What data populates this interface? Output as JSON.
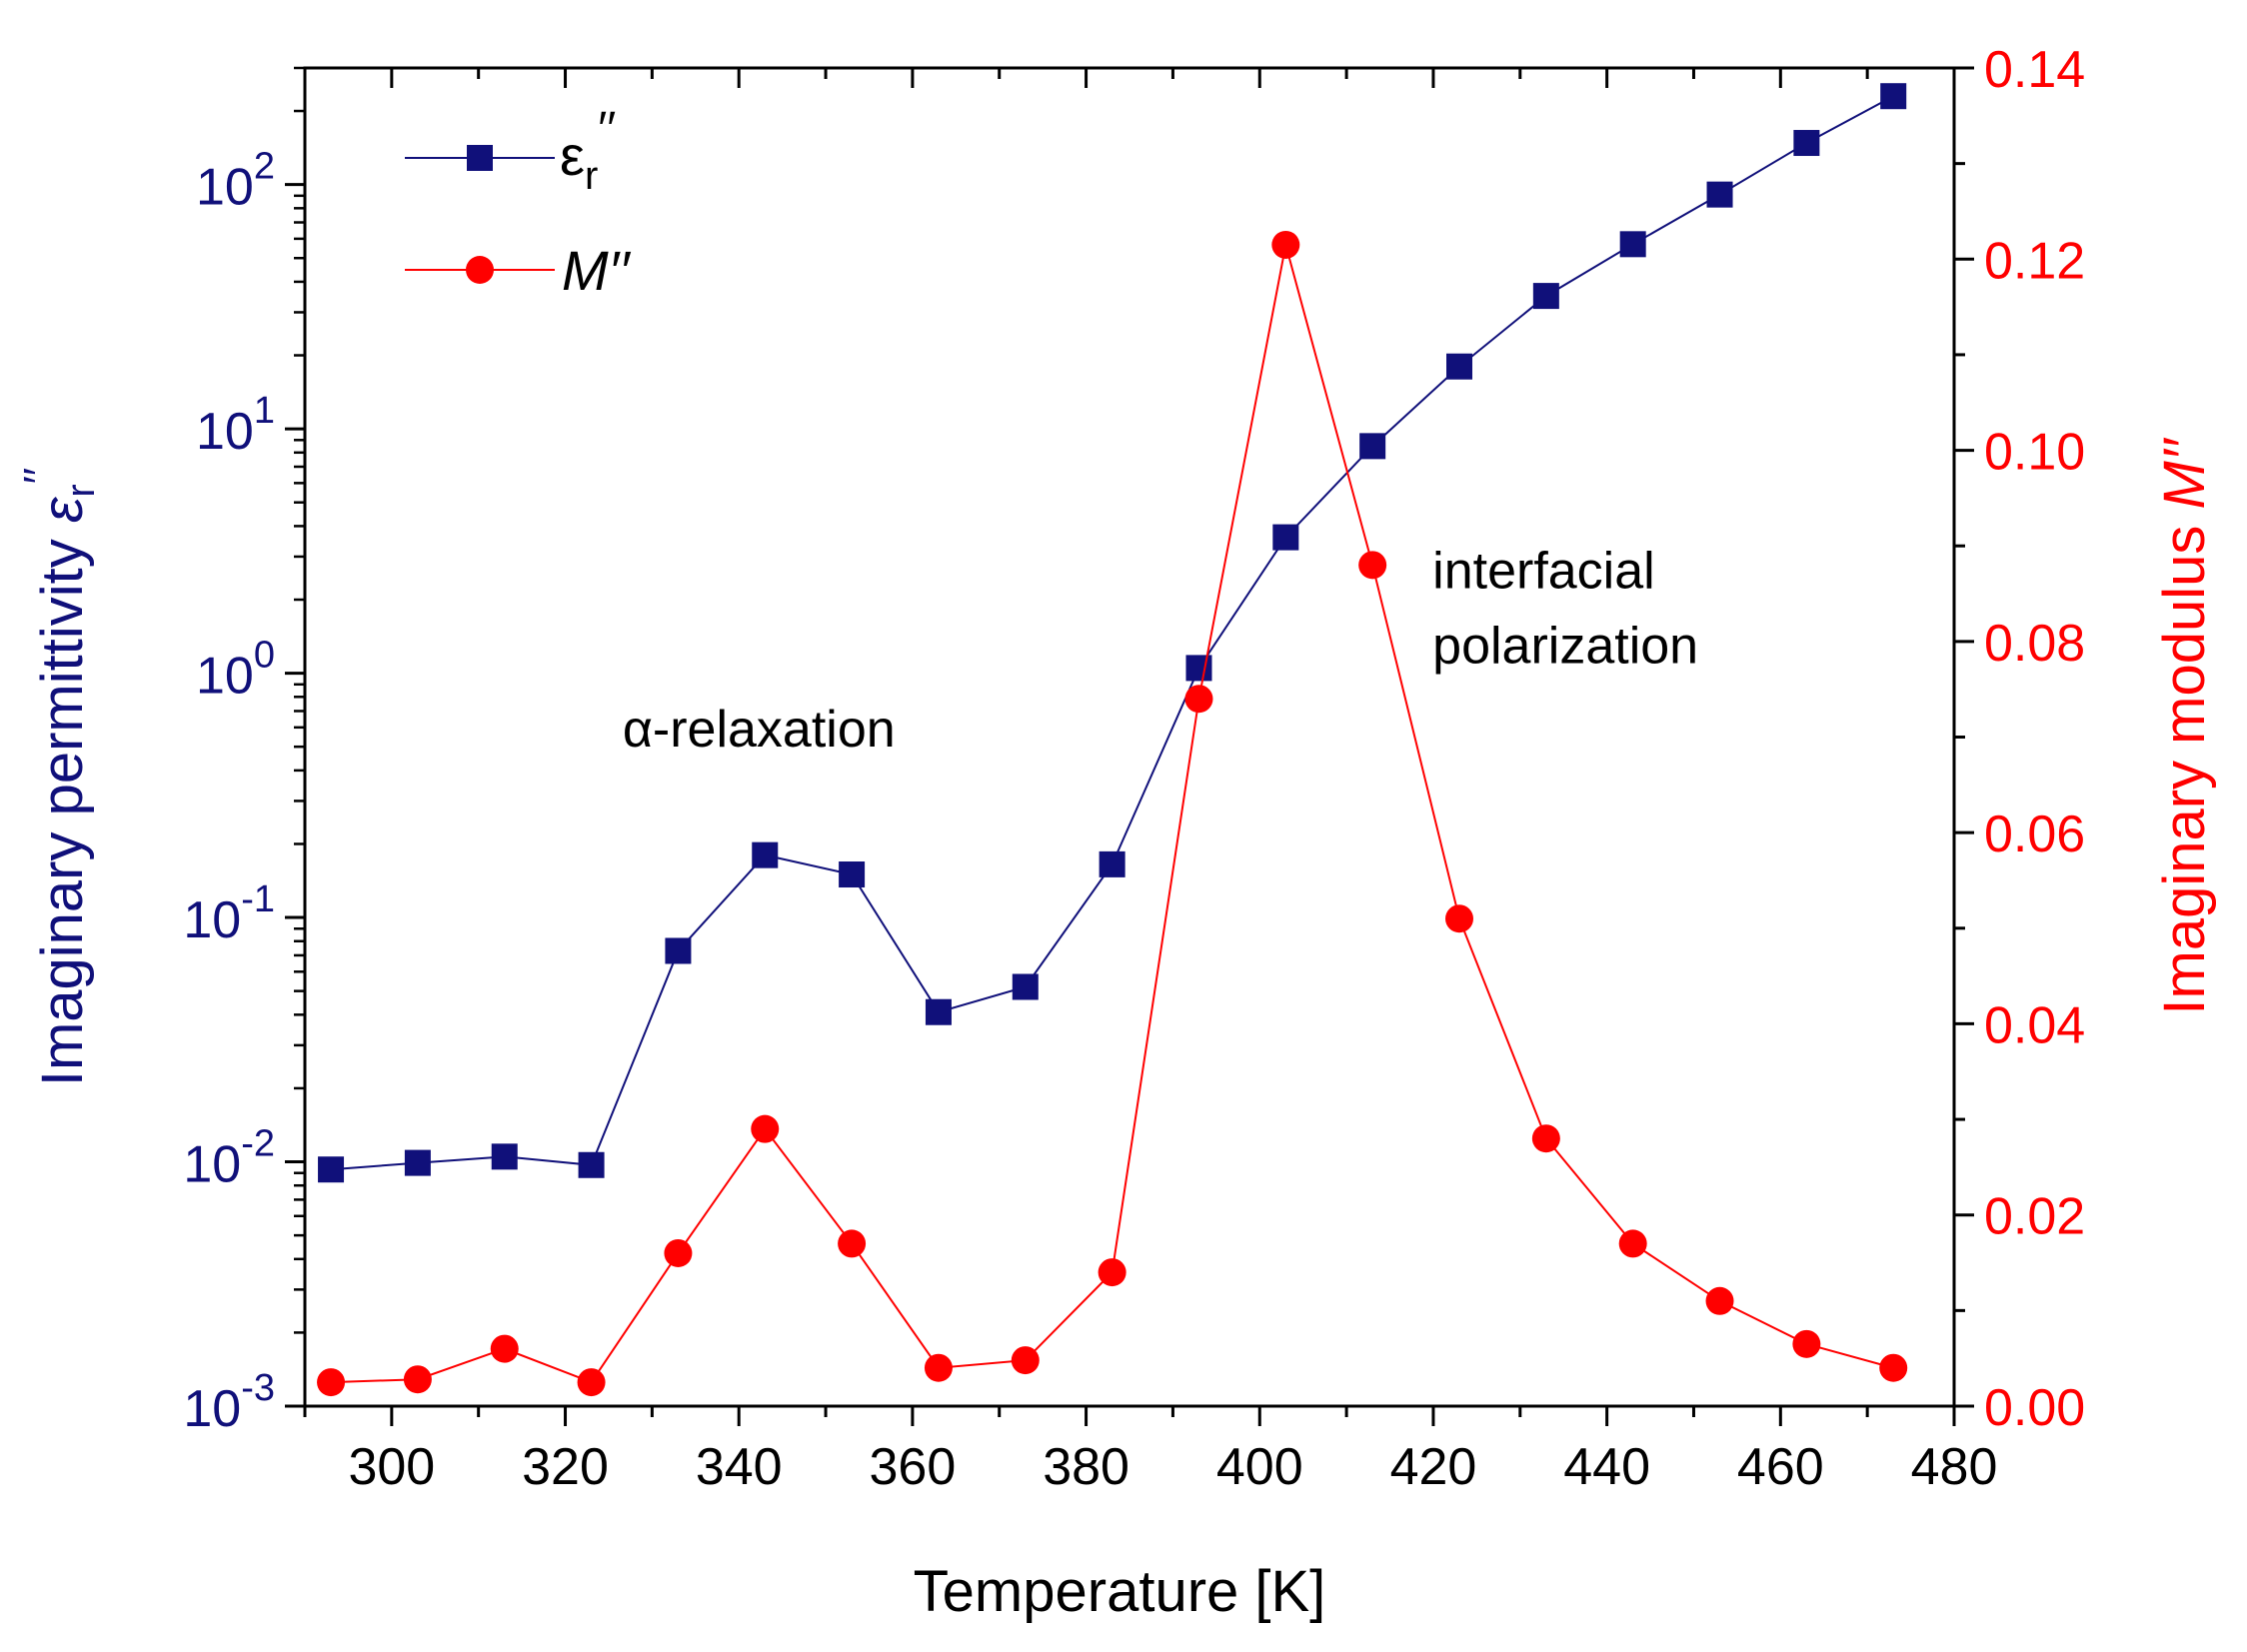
{
  "chart_data": {
    "type": "line",
    "x_axis": {
      "label": "Temperature [K]",
      "lim": [
        290,
        480
      ],
      "ticks": [
        300,
        320,
        340,
        360,
        380,
        400,
        420,
        440,
        460,
        480
      ],
      "tick_labels": [
        "300",
        "320",
        "340",
        "360",
        "380",
        "400",
        "420",
        "440",
        "460",
        "480"
      ]
    },
    "y_left": {
      "label_prefix": "Imaginary permittivity ",
      "label_symbol": "ε",
      "label_sub": "r",
      "label_sup": "′′",
      "scale": "log",
      "lim": [
        0.001,
        300
      ],
      "ticks": [
        {
          "value": 0.001,
          "base": "10",
          "exp": "-3"
        },
        {
          "value": 0.01,
          "base": "10",
          "exp": "-2"
        },
        {
          "value": 0.1,
          "base": "10",
          "exp": "-1"
        },
        {
          "value": 1,
          "base": "10",
          "exp": "0"
        },
        {
          "value": 10,
          "base": "10",
          "exp": "1"
        },
        {
          "value": 100,
          "base": "10",
          "exp": "2"
        }
      ],
      "color": "#10107a"
    },
    "y_right": {
      "label_prefix": "Imaginary modulus ",
      "label_italic": "M′′",
      "scale": "linear",
      "lim": [
        0,
        0.14
      ],
      "ticks": [
        0,
        0.02,
        0.04,
        0.06,
        0.08,
        0.1,
        0.12,
        0.14
      ],
      "tick_labels": [
        "0.00",
        "0.02",
        "0.04",
        "0.06",
        "0.08",
        "0.10",
        "0.12",
        "0.14"
      ],
      "color": "#ff0000"
    },
    "series": [
      {
        "name": "ε_r′′",
        "legend_symbol": "ε",
        "legend_sub": "r",
        "legend_sup": "′′",
        "axis": "left",
        "marker": "square",
        "color": "#10107a",
        "x": [
          293,
          303,
          313,
          323,
          333,
          343,
          353,
          363,
          373,
          383,
          393,
          403,
          413,
          423,
          433,
          443,
          453,
          463,
          473
        ],
        "values": [
          0.0093,
          0.0099,
          0.0105,
          0.0097,
          0.073,
          0.18,
          0.15,
          0.041,
          0.052,
          0.165,
          1.05,
          3.6,
          8.5,
          18,
          35,
          57,
          91,
          148,
          230
        ]
      },
      {
        "name": "M′′",
        "legend_label": "M′′",
        "axis": "right",
        "marker": "circle",
        "color": "#ff0000",
        "x": [
          293,
          303,
          313,
          323,
          333,
          343,
          353,
          363,
          373,
          383,
          393,
          403,
          413,
          423,
          433,
          443,
          453,
          463,
          473
        ],
        "values": [
          0.0025,
          0.0028,
          0.006,
          0.0025,
          0.016,
          0.029,
          0.017,
          0.004,
          0.0048,
          0.014,
          0.074,
          0.1215,
          0.088,
          0.051,
          0.028,
          0.017,
          0.011,
          0.0065,
          0.004
        ]
      }
    ],
    "annotations": [
      {
        "text": "α-relaxation",
        "x": 343,
        "y_left": 0.5
      },
      {
        "text_lines": [
          "interfacial",
          "polarization"
        ],
        "x": 413,
        "y_left": 2.5
      }
    ],
    "legend_position": "top-left",
    "grid": false
  }
}
